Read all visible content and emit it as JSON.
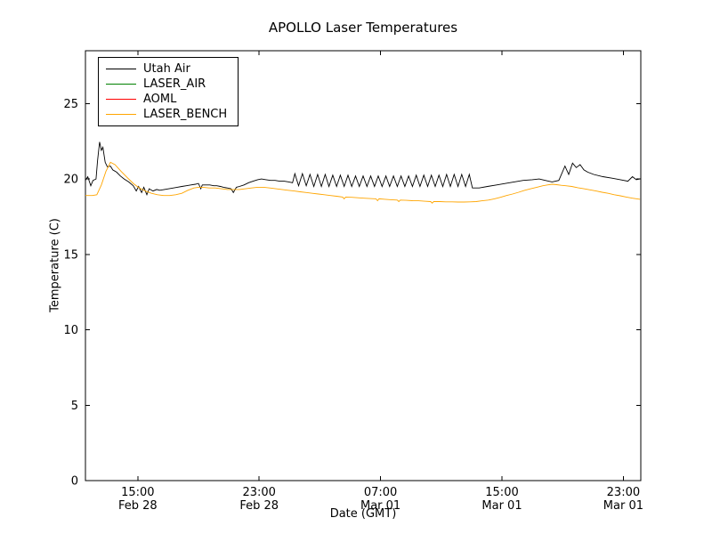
{
  "figure": {
    "background": "#ffffff",
    "frame_color": "#000000"
  },
  "chart_data": {
    "type": "line",
    "title": "APOLLO Laser Temperatures",
    "xlabel": "Date (GMT)",
    "ylabel": "Temperature (C)",
    "grid": false,
    "legend_position": "upper left",
    "ylim": [
      0,
      28.5
    ],
    "xlim": [
      11.55,
      48.15
    ],
    "x_unit": "hours since Feb 28 00:00 GMT",
    "yticks": [
      0,
      5,
      10,
      15,
      20,
      25
    ],
    "xticks": [
      {
        "value": 15,
        "time": "15:00",
        "date": "Feb 28"
      },
      {
        "value": 23,
        "time": "23:00",
        "date": "Feb 28"
      },
      {
        "value": 31,
        "time": "07:00",
        "date": "Mar 01"
      },
      {
        "value": 39,
        "time": "15:00",
        "date": "Mar 01"
      },
      {
        "value": 47,
        "time": "23:00",
        "date": "Mar 01"
      }
    ],
    "legend": [
      {
        "label": "Utah Air",
        "color": "#000000"
      },
      {
        "label": "LASER_AIR",
        "color": "#008000"
      },
      {
        "label": "AOML",
        "color": "#ff0000"
      },
      {
        "label": "LASER_BENCH",
        "color": "#ffa500"
      }
    ],
    "series": [
      {
        "name": "Utah Air",
        "color": "#000000",
        "points": [
          [
            11.55,
            19.9
          ],
          [
            11.7,
            20.15
          ],
          [
            11.9,
            19.55
          ],
          [
            12.05,
            19.9
          ],
          [
            12.25,
            20.0
          ],
          [
            12.35,
            21.2
          ],
          [
            12.48,
            22.45
          ],
          [
            12.6,
            21.9
          ],
          [
            12.7,
            22.1
          ],
          [
            12.85,
            21.1
          ],
          [
            13.0,
            20.8
          ],
          [
            13.2,
            20.85
          ],
          [
            13.35,
            20.6
          ],
          [
            13.6,
            20.45
          ],
          [
            13.85,
            20.2
          ],
          [
            14.1,
            20.0
          ],
          [
            14.4,
            19.8
          ],
          [
            14.7,
            19.55
          ],
          [
            14.9,
            19.2
          ],
          [
            15.05,
            19.5
          ],
          [
            15.25,
            19.1
          ],
          [
            15.4,
            19.45
          ],
          [
            15.6,
            18.95
          ],
          [
            15.75,
            19.35
          ],
          [
            16.0,
            19.2
          ],
          [
            16.25,
            19.3
          ],
          [
            16.45,
            19.25
          ],
          [
            16.75,
            19.3
          ],
          [
            17.05,
            19.35
          ],
          [
            17.35,
            19.4
          ],
          [
            17.6,
            19.45
          ],
          [
            17.9,
            19.5
          ],
          [
            18.2,
            19.55
          ],
          [
            18.5,
            19.6
          ],
          [
            18.8,
            19.65
          ],
          [
            19.0,
            19.7
          ],
          [
            19.15,
            19.35
          ],
          [
            19.25,
            19.6
          ],
          [
            19.5,
            19.6
          ],
          [
            19.75,
            19.6
          ],
          [
            20.0,
            19.55
          ],
          [
            20.2,
            19.55
          ],
          [
            20.45,
            19.5
          ],
          [
            20.65,
            19.45
          ],
          [
            20.9,
            19.4
          ],
          [
            21.15,
            19.35
          ],
          [
            21.3,
            19.1
          ],
          [
            21.5,
            19.45
          ],
          [
            21.7,
            19.5
          ],
          [
            22.0,
            19.6
          ],
          [
            22.3,
            19.75
          ],
          [
            22.6,
            19.85
          ],
          [
            22.9,
            19.95
          ],
          [
            23.15,
            20.0
          ],
          [
            23.45,
            19.95
          ],
          [
            23.75,
            19.9
          ],
          [
            24.05,
            19.9
          ],
          [
            24.35,
            19.85
          ],
          [
            24.65,
            19.85
          ],
          [
            24.95,
            19.8
          ],
          [
            25.2,
            19.75
          ],
          [
            25.35,
            20.35
          ],
          [
            25.6,
            19.55
          ],
          [
            25.85,
            20.35
          ],
          [
            26.1,
            19.55
          ],
          [
            26.35,
            20.3
          ],
          [
            26.6,
            19.5
          ],
          [
            26.85,
            20.3
          ],
          [
            27.1,
            19.5
          ],
          [
            27.35,
            20.3
          ],
          [
            27.6,
            19.5
          ],
          [
            27.85,
            20.25
          ],
          [
            28.1,
            19.5
          ],
          [
            28.35,
            20.25
          ],
          [
            28.6,
            19.5
          ],
          [
            28.85,
            20.25
          ],
          [
            29.1,
            19.5
          ],
          [
            29.35,
            20.2
          ],
          [
            29.6,
            19.5
          ],
          [
            29.85,
            20.2
          ],
          [
            30.1,
            19.5
          ],
          [
            30.35,
            20.2
          ],
          [
            30.6,
            19.5
          ],
          [
            30.85,
            20.2
          ],
          [
            31.1,
            19.5
          ],
          [
            31.35,
            20.2
          ],
          [
            31.6,
            19.5
          ],
          [
            31.85,
            20.2
          ],
          [
            32.1,
            19.5
          ],
          [
            32.35,
            20.2
          ],
          [
            32.6,
            19.5
          ],
          [
            32.85,
            20.2
          ],
          [
            33.1,
            19.5
          ],
          [
            33.35,
            20.25
          ],
          [
            33.6,
            19.5
          ],
          [
            33.85,
            20.25
          ],
          [
            34.1,
            19.5
          ],
          [
            34.35,
            20.25
          ],
          [
            34.6,
            19.5
          ],
          [
            34.85,
            20.25
          ],
          [
            35.1,
            19.5
          ],
          [
            35.35,
            20.3
          ],
          [
            35.6,
            19.5
          ],
          [
            35.85,
            20.3
          ],
          [
            36.1,
            19.5
          ],
          [
            36.35,
            20.3
          ],
          [
            36.6,
            19.5
          ],
          [
            36.85,
            20.3
          ],
          [
            37.05,
            19.4
          ],
          [
            37.5,
            19.4
          ],
          [
            38.05,
            19.5
          ],
          [
            38.65,
            19.6
          ],
          [
            39.5,
            19.75
          ],
          [
            40.4,
            19.9
          ],
          [
            41.0,
            19.95
          ],
          [
            41.45,
            20.0
          ],
          [
            41.85,
            19.9
          ],
          [
            42.3,
            19.8
          ],
          [
            42.75,
            19.9
          ],
          [
            43.15,
            20.85
          ],
          [
            43.4,
            20.3
          ],
          [
            43.65,
            21.05
          ],
          [
            43.9,
            20.75
          ],
          [
            44.15,
            20.95
          ],
          [
            44.4,
            20.6
          ],
          [
            44.65,
            20.45
          ],
          [
            45.05,
            20.3
          ],
          [
            45.65,
            20.15
          ],
          [
            46.25,
            20.05
          ],
          [
            46.8,
            19.95
          ],
          [
            47.3,
            19.85
          ],
          [
            47.6,
            20.15
          ],
          [
            47.85,
            19.95
          ],
          [
            48.1,
            20.0
          ]
        ]
      },
      {
        "name": "LASER_AIR",
        "color": "#008000",
        "points": []
      },
      {
        "name": "AOML",
        "color": "#ff0000",
        "points": []
      },
      {
        "name": "LASER_BENCH",
        "color": "#ffa500",
        "points": [
          [
            11.55,
            18.9
          ],
          [
            12.0,
            18.9
          ],
          [
            12.3,
            18.95
          ],
          [
            12.6,
            19.6
          ],
          [
            12.9,
            20.5
          ],
          [
            13.2,
            21.1
          ],
          [
            13.5,
            20.95
          ],
          [
            13.9,
            20.5
          ],
          [
            14.3,
            20.1
          ],
          [
            14.7,
            19.7
          ],
          [
            15.1,
            19.4
          ],
          [
            15.5,
            19.2
          ],
          [
            15.9,
            19.05
          ],
          [
            16.3,
            18.95
          ],
          [
            16.7,
            18.9
          ],
          [
            17.1,
            18.9
          ],
          [
            17.5,
            18.95
          ],
          [
            17.9,
            19.05
          ],
          [
            18.3,
            19.25
          ],
          [
            18.7,
            19.4
          ],
          [
            19.0,
            19.45
          ],
          [
            19.3,
            19.45
          ],
          [
            19.7,
            19.4
          ],
          [
            20.1,
            19.4
          ],
          [
            20.5,
            19.35
          ],
          [
            20.9,
            19.3
          ],
          [
            21.3,
            19.3
          ],
          [
            21.7,
            19.3
          ],
          [
            22.1,
            19.35
          ],
          [
            22.5,
            19.4
          ],
          [
            22.9,
            19.45
          ],
          [
            23.3,
            19.45
          ],
          [
            23.7,
            19.4
          ],
          [
            24.1,
            19.35
          ],
          [
            24.5,
            19.3
          ],
          [
            24.9,
            19.25
          ],
          [
            25.3,
            19.2
          ],
          [
            25.7,
            19.15
          ],
          [
            26.1,
            19.1
          ],
          [
            26.5,
            19.05
          ],
          [
            26.9,
            19.0
          ],
          [
            27.3,
            18.95
          ],
          [
            27.7,
            18.9
          ],
          [
            28.1,
            18.85
          ],
          [
            28.5,
            18.8
          ],
          [
            28.6,
            18.68
          ],
          [
            28.7,
            18.8
          ],
          [
            29.1,
            18.78
          ],
          [
            29.5,
            18.75
          ],
          [
            29.9,
            18.72
          ],
          [
            30.3,
            18.7
          ],
          [
            30.7,
            18.68
          ],
          [
            30.8,
            18.56
          ],
          [
            30.9,
            18.68
          ],
          [
            31.3,
            18.65
          ],
          [
            31.7,
            18.62
          ],
          [
            32.1,
            18.6
          ],
          [
            32.2,
            18.5
          ],
          [
            32.3,
            18.6
          ],
          [
            32.7,
            18.58
          ],
          [
            33.1,
            18.56
          ],
          [
            33.5,
            18.55
          ],
          [
            33.9,
            18.52
          ],
          [
            34.3,
            18.5
          ],
          [
            34.4,
            18.4
          ],
          [
            34.5,
            18.5
          ],
          [
            34.9,
            18.5
          ],
          [
            35.3,
            18.48
          ],
          [
            35.7,
            18.48
          ],
          [
            36.1,
            18.47
          ],
          [
            36.5,
            18.47
          ],
          [
            36.9,
            18.48
          ],
          [
            37.3,
            18.5
          ],
          [
            37.7,
            18.55
          ],
          [
            38.1,
            18.6
          ],
          [
            38.5,
            18.68
          ],
          [
            38.9,
            18.78
          ],
          [
            39.3,
            18.9
          ],
          [
            39.7,
            19.0
          ],
          [
            40.1,
            19.12
          ],
          [
            40.5,
            19.25
          ],
          [
            40.9,
            19.35
          ],
          [
            41.3,
            19.45
          ],
          [
            41.7,
            19.55
          ],
          [
            42.0,
            19.6
          ],
          [
            42.3,
            19.65
          ],
          [
            42.6,
            19.62
          ],
          [
            42.9,
            19.58
          ],
          [
            43.2,
            19.55
          ],
          [
            43.6,
            19.5
          ],
          [
            44.0,
            19.42
          ],
          [
            44.4,
            19.35
          ],
          [
            44.8,
            19.28
          ],
          [
            45.2,
            19.2
          ],
          [
            45.6,
            19.12
          ],
          [
            46.0,
            19.05
          ],
          [
            46.4,
            18.95
          ],
          [
            46.8,
            18.88
          ],
          [
            47.2,
            18.8
          ],
          [
            47.6,
            18.72
          ],
          [
            48.1,
            18.65
          ]
        ]
      }
    ]
  }
}
